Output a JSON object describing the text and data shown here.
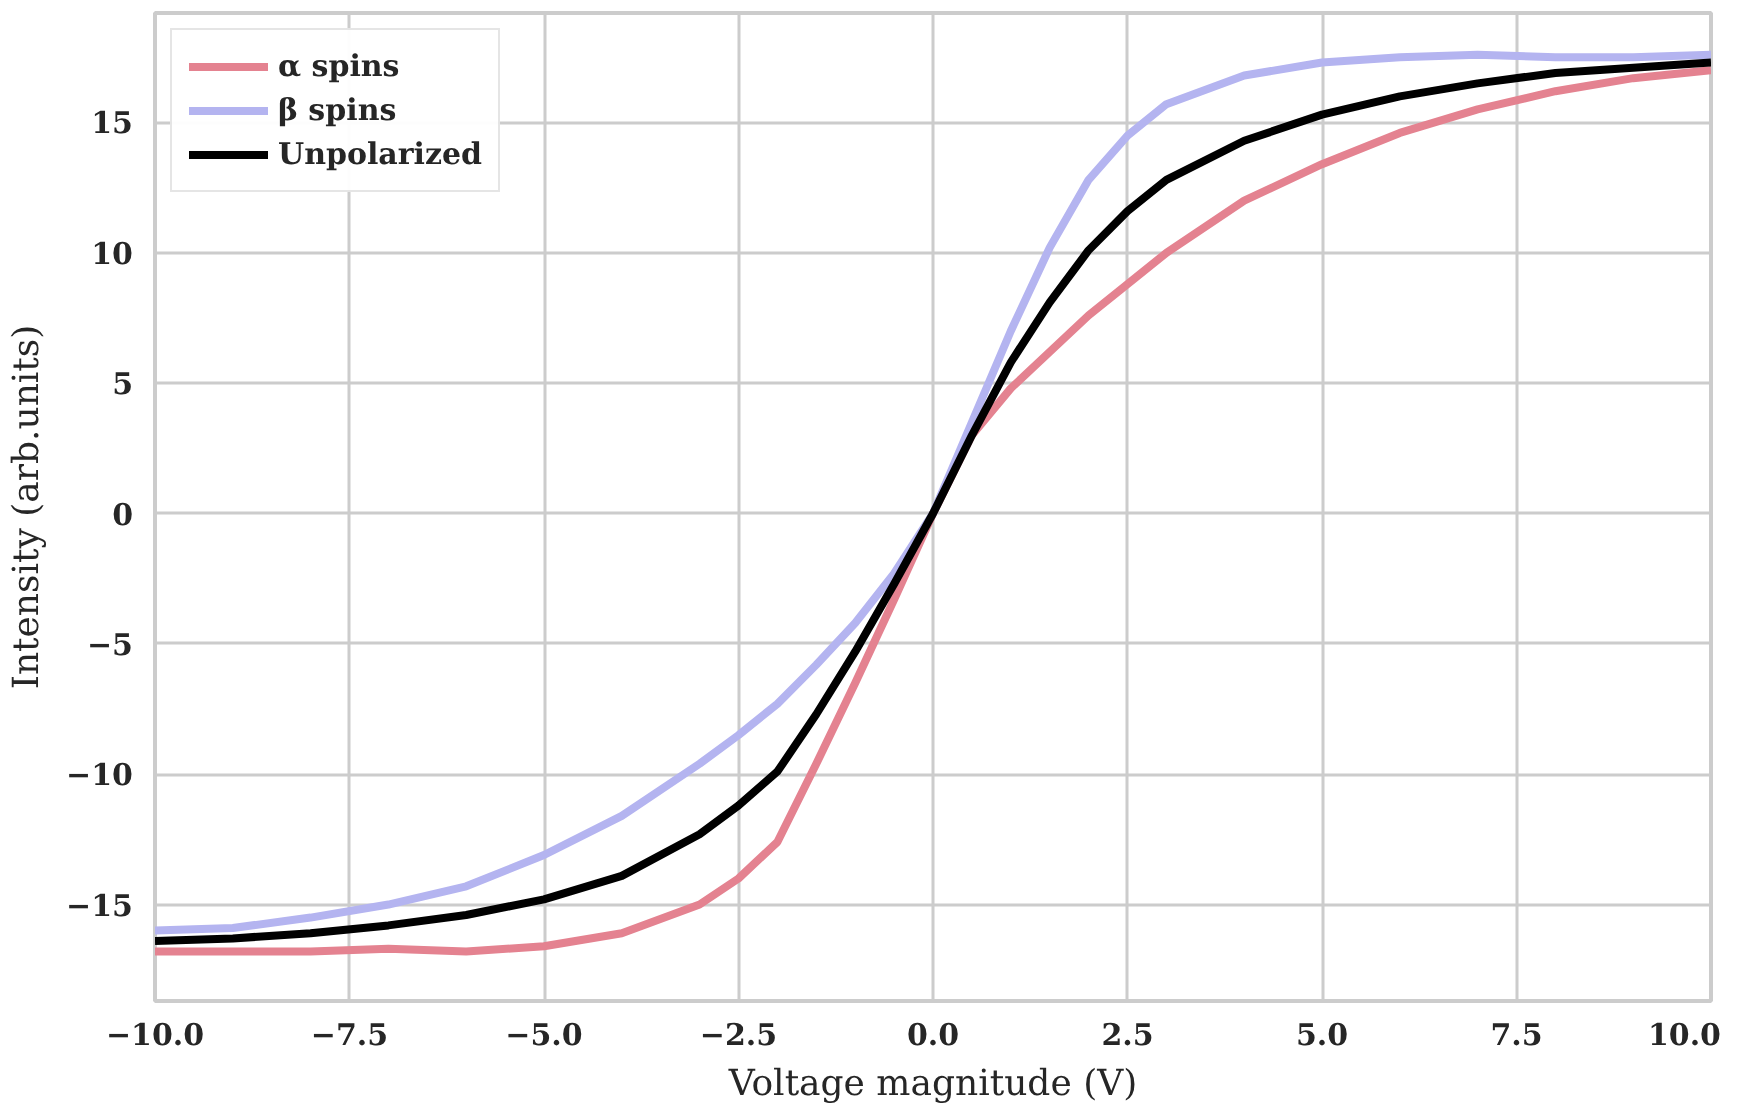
{
  "chart_data": {
    "type": "line",
    "xlabel": "Voltage magnitude (V)",
    "ylabel": "Intensity (arb.units)",
    "xlim": [
      -10,
      10
    ],
    "ylim": [
      -18.7,
      19.2
    ],
    "xticks": [
      {
        "value": -10,
        "label": "−10.0"
      },
      {
        "value": -7.5,
        "label": "−7.5"
      },
      {
        "value": -5,
        "label": "−5.0"
      },
      {
        "value": -2.5,
        "label": "−2.5"
      },
      {
        "value": 0,
        "label": "0.0"
      },
      {
        "value": 2.5,
        "label": "2.5"
      },
      {
        "value": 5,
        "label": "5.0"
      },
      {
        "value": 7.5,
        "label": "7.5"
      },
      {
        "value": 10,
        "label": "10.0"
      }
    ],
    "yticks": [
      {
        "value": -15,
        "label": "−15"
      },
      {
        "value": -10,
        "label": "−10"
      },
      {
        "value": -5,
        "label": "−5"
      },
      0,
      5,
      10,
      15
    ],
    "grid": true,
    "legend": "top left",
    "line_style": "solid",
    "marker": "none",
    "x": [
      -10,
      -9,
      -8,
      -7,
      -6,
      -5,
      -4,
      -3,
      -2.5,
      -2,
      -1.5,
      -1,
      -0.5,
      0,
      0.5,
      1,
      1.5,
      2,
      2.5,
      3,
      4,
      5,
      6,
      7,
      8,
      9,
      10
    ],
    "series": [
      {
        "name": "α spins",
        "color": "#e48290",
        "values": [
          -16.8,
          -16.8,
          -16.8,
          -16.7,
          -16.8,
          -16.6,
          -16.1,
          -15.0,
          -14.0,
          -12.6,
          -9.6,
          -6.5,
          -3.3,
          0,
          3.0,
          4.8,
          6.2,
          7.6,
          8.8,
          10.0,
          12.0,
          13.4,
          14.6,
          15.5,
          16.2,
          16.7,
          17.0
        ]
      },
      {
        "name": "β spins",
        "color": "#b4b4f0",
        "values": [
          -16.0,
          -15.9,
          -15.5,
          -15.0,
          -14.3,
          -13.1,
          -11.6,
          -9.6,
          -8.5,
          -7.3,
          -5.8,
          -4.2,
          -2.3,
          0,
          3.5,
          7.0,
          10.2,
          12.8,
          14.5,
          15.7,
          16.8,
          17.3,
          17.5,
          17.6,
          17.5,
          17.5,
          17.6
        ]
      },
      {
        "name": "Unpolarized",
        "color": "#000000",
        "values": [
          -16.4,
          -16.3,
          -16.1,
          -15.8,
          -15.4,
          -14.8,
          -13.9,
          -12.3,
          -11.2,
          -9.9,
          -7.7,
          -5.3,
          -2.7,
          0,
          3.0,
          5.8,
          8.1,
          10.1,
          11.6,
          12.8,
          14.3,
          15.3,
          16.0,
          16.5,
          16.9,
          17.1,
          17.3
        ]
      }
    ]
  }
}
